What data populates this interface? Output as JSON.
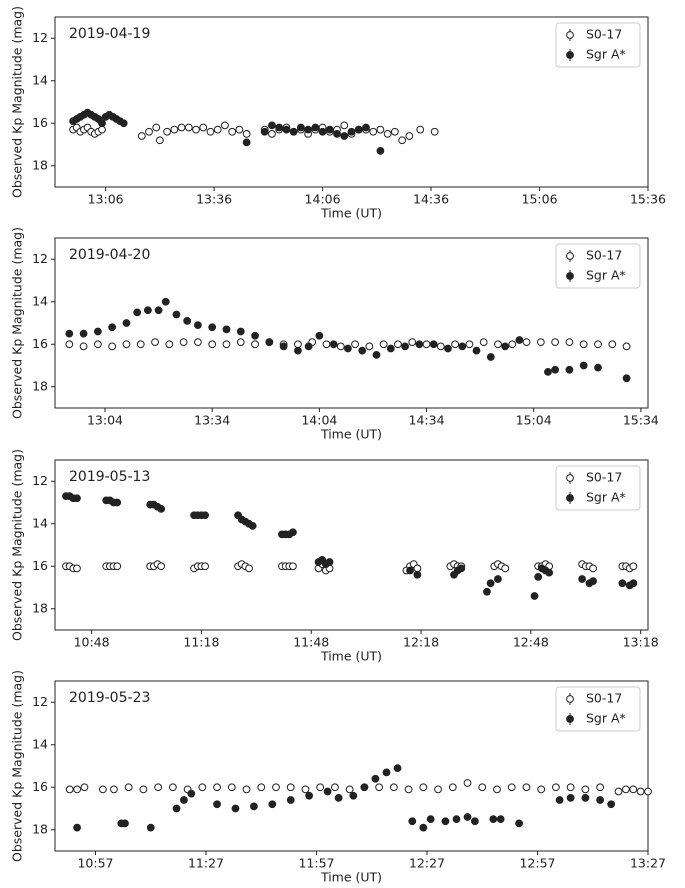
{
  "chart_data": [
    {
      "type": "scatter",
      "title": "2019-04-19",
      "xlabel": "Time (UT)",
      "ylabel": "Observed Kp Magnitude (mag)",
      "xlim": [
        "12:52",
        "15:36"
      ],
      "xticks": [
        "13:06",
        "13:36",
        "14:06",
        "14:36",
        "15:06",
        "15:36"
      ],
      "ylim": [
        19,
        11
      ],
      "yticks": [
        12,
        14,
        16,
        18
      ],
      "legend": "upper right",
      "series": [
        {
          "name": "S0-17",
          "color": "#222222",
          "hollow": true,
          "x": [
            "12:57",
            "12:58",
            "12:59",
            "13:00",
            "13:01",
            "13:02",
            "13:03",
            "13:04",
            "13:05",
            "13:16",
            "13:18",
            "13:20",
            "13:21",
            "13:23",
            "13:25",
            "13:27",
            "13:29",
            "13:31",
            "13:33",
            "13:35",
            "13:37",
            "13:39",
            "13:41",
            "13:43",
            "13:45",
            "13:50",
            "13:52",
            "13:54",
            "13:56",
            "13:58",
            "14:00",
            "14:02",
            "14:04",
            "14:06",
            "14:08",
            "14:10",
            "14:12",
            "14:14",
            "14:16",
            "14:18",
            "14:20",
            "14:22",
            "14:24",
            "14:26",
            "14:28",
            "14:30",
            "14:33",
            "14:37"
          ],
          "values": [
            16.3,
            16.2,
            16.4,
            16.3,
            16.2,
            16.4,
            16.5,
            16.4,
            16.3,
            16.6,
            16.4,
            16.2,
            16.8,
            16.4,
            16.3,
            16.2,
            16.2,
            16.3,
            16.2,
            16.4,
            16.3,
            16.1,
            16.4,
            16.3,
            16.5,
            16.3,
            16.5,
            16.3,
            16.2,
            16.4,
            16.3,
            16.5,
            16.3,
            16.2,
            16.4,
            16.3,
            16.1,
            16.5,
            16.3,
            16.3,
            16.4,
            16.3,
            16.5,
            16.4,
            16.8,
            16.6,
            16.3,
            16.4
          ]
        },
        {
          "name": "Sgr A*",
          "color": "#222222",
          "hollow": false,
          "x": [
            "12:57",
            "12:58",
            "12:59",
            "13:00",
            "13:01",
            "13:02",
            "13:03",
            "13:04",
            "13:05",
            "13:06",
            "13:07",
            "13:08",
            "13:09",
            "13:10",
            "13:11",
            "13:45",
            "13:50",
            "13:52",
            "13:54",
            "13:56",
            "13:58",
            "14:00",
            "14:02",
            "14:04",
            "14:06",
            "14:08",
            "14:10",
            "14:12",
            "14:14",
            "14:16",
            "14:18",
            "14:22"
          ],
          "values": [
            15.9,
            15.8,
            15.7,
            15.6,
            15.5,
            15.6,
            15.7,
            15.8,
            16.0,
            15.7,
            15.6,
            15.7,
            15.8,
            15.9,
            16.0,
            16.9,
            16.4,
            16.1,
            16.2,
            16.3,
            16.4,
            16.2,
            16.3,
            16.2,
            16.4,
            16.3,
            16.5,
            16.6,
            16.4,
            16.3,
            16.2,
            17.3
          ]
        }
      ]
    },
    {
      "type": "scatter",
      "title": "2019-04-20",
      "xlabel": "Time (UT)",
      "ylabel": "Observed Kp Magnitude (mag)",
      "xlim": [
        "12:50",
        "15:36"
      ],
      "xticks": [
        "13:04",
        "13:34",
        "14:04",
        "14:34",
        "15:04",
        "15:34"
      ],
      "ylim": [
        19,
        11
      ],
      "yticks": [
        12,
        14,
        16,
        18
      ],
      "legend": "upper right",
      "series": [
        {
          "name": "S0-17",
          "color": "#222222",
          "hollow": true,
          "x": [
            "12:54",
            "12:58",
            "13:02",
            "13:06",
            "13:10",
            "13:14",
            "13:18",
            "13:22",
            "13:26",
            "13:30",
            "13:34",
            "13:38",
            "13:42",
            "13:46",
            "13:50",
            "13:54",
            "13:58",
            "14:02",
            "14:06",
            "14:10",
            "14:14",
            "14:18",
            "14:22",
            "14:26",
            "14:30",
            "14:34",
            "14:38",
            "14:42",
            "14:46",
            "14:50",
            "14:54",
            "14:58",
            "15:02",
            "15:06",
            "15:10",
            "15:14",
            "15:18",
            "15:22",
            "15:26",
            "15:30"
          ],
          "values": [
            16.0,
            16.1,
            16.0,
            16.1,
            16.0,
            16.0,
            15.9,
            16.0,
            15.9,
            15.9,
            16.0,
            16.0,
            15.9,
            16.0,
            15.9,
            16.0,
            16.0,
            15.9,
            16.0,
            16.1,
            16.0,
            16.1,
            16.0,
            16.0,
            15.9,
            16.0,
            16.1,
            16.0,
            16.0,
            15.9,
            16.0,
            16.0,
            15.9,
            15.9,
            15.9,
            15.9,
            16.0,
            16.0,
            16.0,
            16.1
          ]
        },
        {
          "name": "Sgr A*",
          "color": "#222222",
          "hollow": false,
          "x": [
            "12:54",
            "12:58",
            "13:02",
            "13:06",
            "13:10",
            "13:13",
            "13:16",
            "13:19",
            "13:21",
            "13:24",
            "13:27",
            "13:30",
            "13:34",
            "13:38",
            "13:42",
            "13:46",
            "13:50",
            "13:54",
            "13:58",
            "14:01",
            "14:04",
            "14:08",
            "14:12",
            "14:16",
            "14:20",
            "14:24",
            "14:28",
            "14:32",
            "14:36",
            "14:40",
            "14:44",
            "14:48",
            "14:52",
            "14:56",
            "15:00",
            "15:08",
            "15:10",
            "15:14",
            "15:18",
            "15:22",
            "15:30"
          ],
          "values": [
            15.5,
            15.5,
            15.4,
            15.2,
            15.0,
            14.5,
            14.4,
            14.4,
            14.0,
            14.6,
            14.9,
            15.1,
            15.2,
            15.3,
            15.4,
            15.6,
            15.9,
            16.1,
            16.3,
            16.1,
            15.6,
            16.0,
            16.2,
            16.3,
            16.5,
            16.2,
            16.1,
            16.0,
            16.0,
            16.2,
            16.1,
            16.3,
            16.6,
            16.1,
            15.8,
            17.3,
            17.2,
            17.2,
            17.0,
            17.1,
            17.6
          ]
        }
      ]
    },
    {
      "type": "scatter",
      "title": "2019-05-13",
      "xlabel": "Time (UT)",
      "ylabel": "Observed Kp Magnitude (mag)",
      "xlim": [
        "10:38",
        "13:20"
      ],
      "xticks": [
        "10:48",
        "11:18",
        "11:48",
        "12:18",
        "12:48",
        "13:18"
      ],
      "ylim": [
        19,
        11
      ],
      "yticks": [
        12,
        14,
        16,
        18
      ],
      "legend": "upper right",
      "series": [
        {
          "name": "S0-17",
          "color": "#222222",
          "hollow": true,
          "x": [
            "10:41",
            "10:42",
            "10:43",
            "10:44",
            "10:52",
            "10:53",
            "10:54",
            "10:55",
            "11:04",
            "11:05",
            "11:06",
            "11:07",
            "11:16",
            "11:17",
            "11:18",
            "11:19",
            "11:28",
            "11:29",
            "11:30",
            "11:31",
            "11:40",
            "11:41",
            "11:42",
            "11:43",
            "11:50",
            "11:51",
            "11:52",
            "11:53",
            "12:14",
            "12:15",
            "12:16",
            "12:17",
            "12:26",
            "12:27",
            "12:28",
            "12:29",
            "12:38",
            "12:39",
            "12:40",
            "12:41",
            "12:50",
            "12:51",
            "12:52",
            "12:53",
            "13:02",
            "13:03",
            "13:04",
            "13:05",
            "13:13",
            "13:14",
            "13:15",
            "13:16"
          ],
          "values": [
            16.0,
            16.0,
            16.1,
            16.1,
            16.0,
            16.0,
            16.0,
            16.0,
            16.0,
            16.0,
            15.9,
            16.0,
            16.1,
            16.0,
            16.0,
            16.0,
            16.0,
            15.9,
            16.0,
            16.1,
            16.0,
            16.0,
            16.0,
            16.0,
            16.1,
            15.9,
            16.2,
            16.1,
            16.2,
            16.0,
            15.9,
            16.1,
            16.0,
            15.9,
            16.0,
            16.0,
            16.0,
            15.9,
            16.0,
            16.1,
            16.0,
            16.0,
            15.9,
            16.0,
            15.9,
            16.0,
            16.0,
            16.1,
            16.0,
            16.0,
            16.1,
            16.0
          ]
        },
        {
          "name": "Sgr A*",
          "color": "#222222",
          "hollow": false,
          "x": [
            "10:41",
            "10:42",
            "10:43",
            "10:44",
            "10:52",
            "10:53",
            "10:54",
            "10:55",
            "11:04",
            "11:05",
            "11:06",
            "11:07",
            "11:16",
            "11:17",
            "11:18",
            "11:19",
            "11:28",
            "11:29",
            "11:30",
            "11:31",
            "11:32",
            "11:40",
            "11:41",
            "11:42",
            "11:43",
            "11:50",
            "11:51",
            "11:52",
            "11:53",
            "12:15",
            "12:17",
            "12:27",
            "12:28",
            "12:29",
            "12:36",
            "12:37",
            "12:39",
            "12:49",
            "12:50",
            "12:51",
            "12:52",
            "12:53",
            "13:02",
            "13:04",
            "13:05",
            "13:13",
            "13:15",
            "13:16"
          ],
          "values": [
            12.7,
            12.7,
            12.8,
            12.8,
            12.9,
            12.9,
            13.0,
            13.0,
            13.1,
            13.1,
            13.2,
            13.3,
            13.6,
            13.6,
            13.6,
            13.6,
            13.6,
            13.8,
            13.9,
            14.0,
            14.1,
            14.5,
            14.5,
            14.5,
            14.4,
            15.8,
            15.7,
            15.9,
            15.8,
            16.2,
            16.4,
            16.4,
            16.2,
            16.1,
            17.2,
            16.8,
            16.6,
            17.4,
            16.5,
            16.1,
            16.2,
            16.3,
            16.6,
            16.8,
            16.7,
            16.8,
            16.9,
            16.8
          ]
        }
      ]
    },
    {
      "type": "scatter",
      "title": "2019-05-23",
      "xlabel": "Time (UT)",
      "ylabel": "Observed Kp Magnitude (mag)",
      "xlim": [
        "10:46",
        "13:27"
      ],
      "xticks": [
        "10:57",
        "11:27",
        "11:57",
        "12:27",
        "12:57",
        "13:27"
      ],
      "ylim": [
        19,
        11
      ],
      "yticks": [
        12,
        14,
        16,
        18
      ],
      "legend": "upper right",
      "series": [
        {
          "name": "S0-17",
          "color": "#222222",
          "hollow": true,
          "x": [
            "10:50",
            "10:52",
            "10:54",
            "10:59",
            "11:02",
            "11:06",
            "11:10",
            "11:14",
            "11:18",
            "11:22",
            "11:26",
            "11:30",
            "11:34",
            "11:38",
            "11:42",
            "11:46",
            "11:50",
            "11:54",
            "11:58",
            "12:02",
            "12:06",
            "12:10",
            "12:14",
            "12:18",
            "12:22",
            "12:26",
            "12:30",
            "12:34",
            "12:38",
            "12:42",
            "12:46",
            "12:50",
            "12:54",
            "12:58",
            "13:02",
            "13:06",
            "13:10",
            "13:14",
            "13:19",
            "13:21",
            "13:23",
            "13:25",
            "13:27"
          ],
          "values": [
            16.1,
            16.1,
            16.0,
            16.1,
            16.1,
            16.0,
            16.1,
            16.0,
            16.0,
            16.1,
            16.0,
            16.0,
            16.0,
            16.1,
            16.0,
            16.0,
            16.0,
            16.1,
            16.0,
            16.0,
            16.1,
            16.0,
            16.0,
            16.0,
            16.1,
            16.0,
            16.1,
            16.0,
            15.8,
            16.0,
            16.1,
            16.0,
            16.0,
            16.1,
            16.0,
            16.0,
            16.1,
            16.0,
            16.2,
            16.1,
            16.1,
            16.2,
            16.2
          ]
        },
        {
          "name": "Sgr A*",
          "color": "#222222",
          "hollow": false,
          "x": [
            "10:52",
            "11:04",
            "11:05",
            "11:12",
            "11:19",
            "11:21",
            "11:23",
            "11:30",
            "11:35",
            "11:40",
            "11:45",
            "11:50",
            "11:55",
            "12:00",
            "12:03",
            "12:07",
            "12:10",
            "12:13",
            "12:16",
            "12:19",
            "12:23",
            "12:26",
            "12:28",
            "12:32",
            "12:35",
            "12:38",
            "12:40",
            "12:45",
            "12:47",
            "12:52",
            "13:03",
            "13:06",
            "13:10",
            "13:14",
            "13:17"
          ],
          "values": [
            17.9,
            17.7,
            17.7,
            17.9,
            17.0,
            16.6,
            16.3,
            16.8,
            17.0,
            16.9,
            16.8,
            16.6,
            16.4,
            16.2,
            16.5,
            16.4,
            16.0,
            15.6,
            15.3,
            15.1,
            17.6,
            17.9,
            17.5,
            17.6,
            17.5,
            17.4,
            17.6,
            17.5,
            17.5,
            17.7,
            16.6,
            16.5,
            16.5,
            16.6,
            16.8
          ]
        }
      ]
    }
  ]
}
